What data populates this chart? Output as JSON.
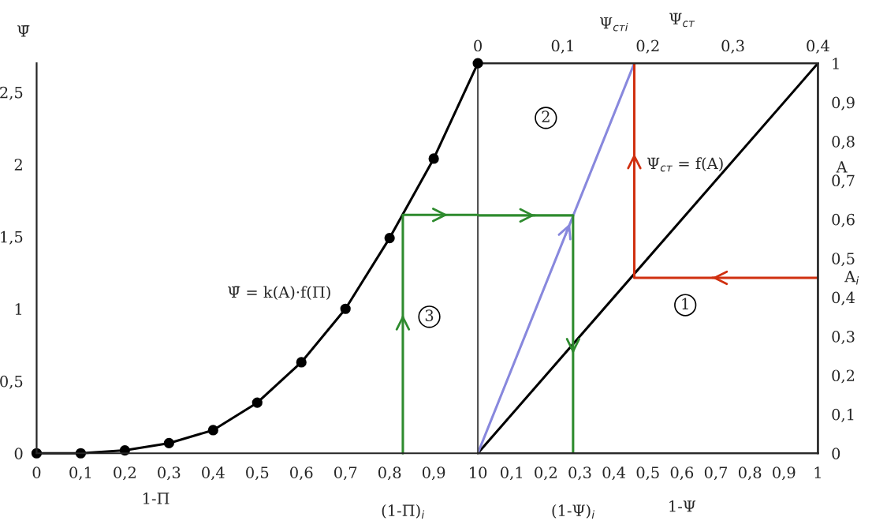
{
  "chart_data": [
    {
      "type": "line",
      "xlabel": "1-Π",
      "ylabel": "Ψ̄",
      "xlim": [
        0,
        1
      ],
      "ylim": [
        0,
        2.7
      ],
      "xticks": [
        0,
        {
          "value": 0.1,
          "label": "0,1"
        },
        {
          "value": 0.2,
          "label": "0,2"
        },
        {
          "value": 0.3,
          "label": "0,3"
        },
        {
          "value": 0.4,
          "label": "0,4"
        },
        {
          "value": 0.5,
          "label": "0,5"
        },
        {
          "value": 0.6,
          "label": "0,6"
        },
        {
          "value": 0.7,
          "label": "0,7"
        },
        {
          "value": 0.8,
          "label": "0,8"
        },
        {
          "value": 0.9,
          "label": "0,9"
        },
        1
      ],
      "yticks": [
        0,
        {
          "value": 0.5,
          "label": "0,5"
        },
        1,
        {
          "value": 1.5,
          "label": "1,5"
        },
        2,
        {
          "value": 2.5,
          "label": "2,5"
        }
      ],
      "grid": false,
      "legend": false,
      "series": [
        {
          "color": "#000000",
          "marker": "circle",
          "x": [
            0,
            0.1,
            0.2,
            0.3,
            0.4,
            0.5,
            0.6,
            0.7,
            0.8,
            0.9,
            1
          ],
          "values": [
            0,
            0,
            0.02,
            0.07,
            0.16,
            0.35,
            0.63,
            1.0,
            1.49,
            2.04,
            2.7
          ]
        },
        {
          "color": "#2e8b2e",
          "x": [
            0.83,
            0.83,
            1
          ],
          "values": [
            0,
            1.65,
            1.65
          ]
        }
      ],
      "annotations": [
        "Ψ̄ = k(A)·f(Π)",
        "3",
        "(1-Π)$_{i}$"
      ]
    },
    {
      "type": "line",
      "xlabel": "1-Ψ",
      "ylabel": "A",
      "x2label": "Ψ$_{ст}$",
      "xlim": [
        0,
        1
      ],
      "ylim": [
        0,
        1
      ],
      "x2lim": [
        0,
        0.4
      ],
      "xticks": [
        0,
        {
          "value": 0.1,
          "label": "0,1"
        },
        {
          "value": 0.2,
          "label": "0,2"
        },
        {
          "value": 0.3,
          "label": "0,3"
        },
        {
          "value": 0.4,
          "label": "0,4"
        },
        {
          "value": 0.5,
          "label": "0,5"
        },
        {
          "value": 0.6,
          "label": "0,6"
        },
        {
          "value": 0.7,
          "label": "0,7"
        },
        {
          "value": 0.8,
          "label": "0,8"
        },
        {
          "value": 0.9,
          "label": "0,9"
        },
        1
      ],
      "yticks": [
        0,
        {
          "value": 0.1,
          "label": "0,1"
        },
        {
          "value": 0.2,
          "label": "0,2"
        },
        {
          "value": 0.3,
          "label": "0,3"
        },
        {
          "value": 0.4,
          "label": "0,4"
        },
        {
          "value": 0.5,
          "label": "0,5"
        },
        {
          "value": 0.6,
          "label": "0,6"
        },
        {
          "value": 0.7,
          "label": "0,7"
        },
        {
          "value": 0.8,
          "label": "0,8"
        },
        {
          "value": 0.9,
          "label": "0,9"
        },
        1
      ],
      "x2ticks": [
        0,
        {
          "value": 0.1,
          "label": "0,1"
        },
        {
          "value": 0.2,
          "label": "0,2"
        },
        {
          "value": 0.3,
          "label": "0,3"
        },
        {
          "value": 0.4,
          "label": "0,4"
        }
      ],
      "grid": false,
      "legend": false,
      "series": [
        {
          "color": "#000000",
          "marker": "none",
          "x": [
            0,
            1
          ],
          "values": [
            0,
            1
          ]
        },
        {
          "color": "#8888dd",
          "x": [
            0,
            0.46
          ],
          "values": [
            0,
            1
          ]
        },
        {
          "color": "#d03010",
          "x": [
            1,
            0.46,
            0.46
          ],
          "values": [
            0.45,
            0.45,
            1
          ]
        },
        {
          "color": "#2e8b2e",
          "x": [
            0,
            0.28,
            0.28
          ],
          "values": [
            0.61,
            0.61,
            0
          ]
        }
      ],
      "annotations": [
        "Ψ$_{ст}$ = f(A)",
        "1",
        "2",
        "(1-Ψ)$_{i}$",
        "Ψ$_{стi}$",
        "A$_{i}$"
      ]
    }
  ]
}
